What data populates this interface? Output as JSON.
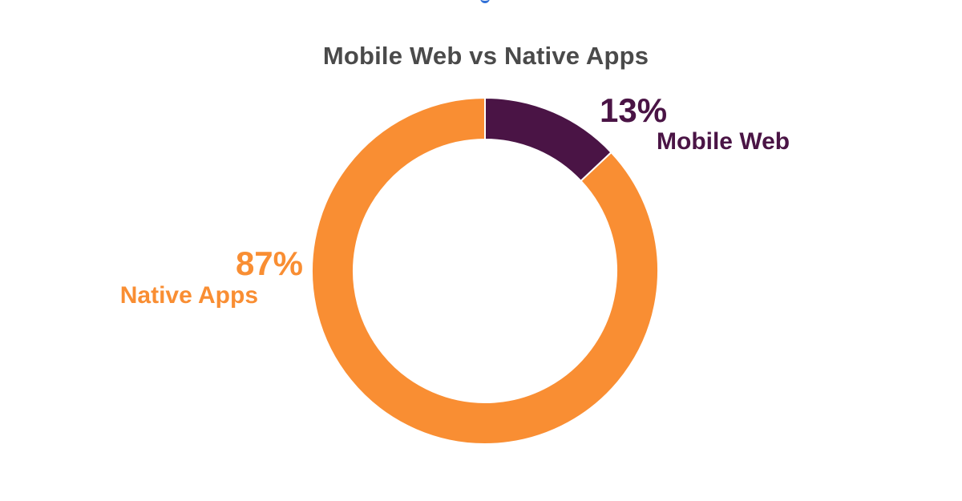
{
  "chart_data": {
    "type": "pie",
    "title": "Mobile Web vs Native Apps",
    "slices": [
      {
        "label": "Mobile Web",
        "value": 13,
        "value_label": "13%",
        "color": "#4a1445"
      },
      {
        "label": "Native Apps",
        "value": 87,
        "value_label": "87%",
        "color": "#f98e33"
      }
    ],
    "title_color": "#4a4a4a",
    "accent_mark_color": "#2f6fd6"
  }
}
